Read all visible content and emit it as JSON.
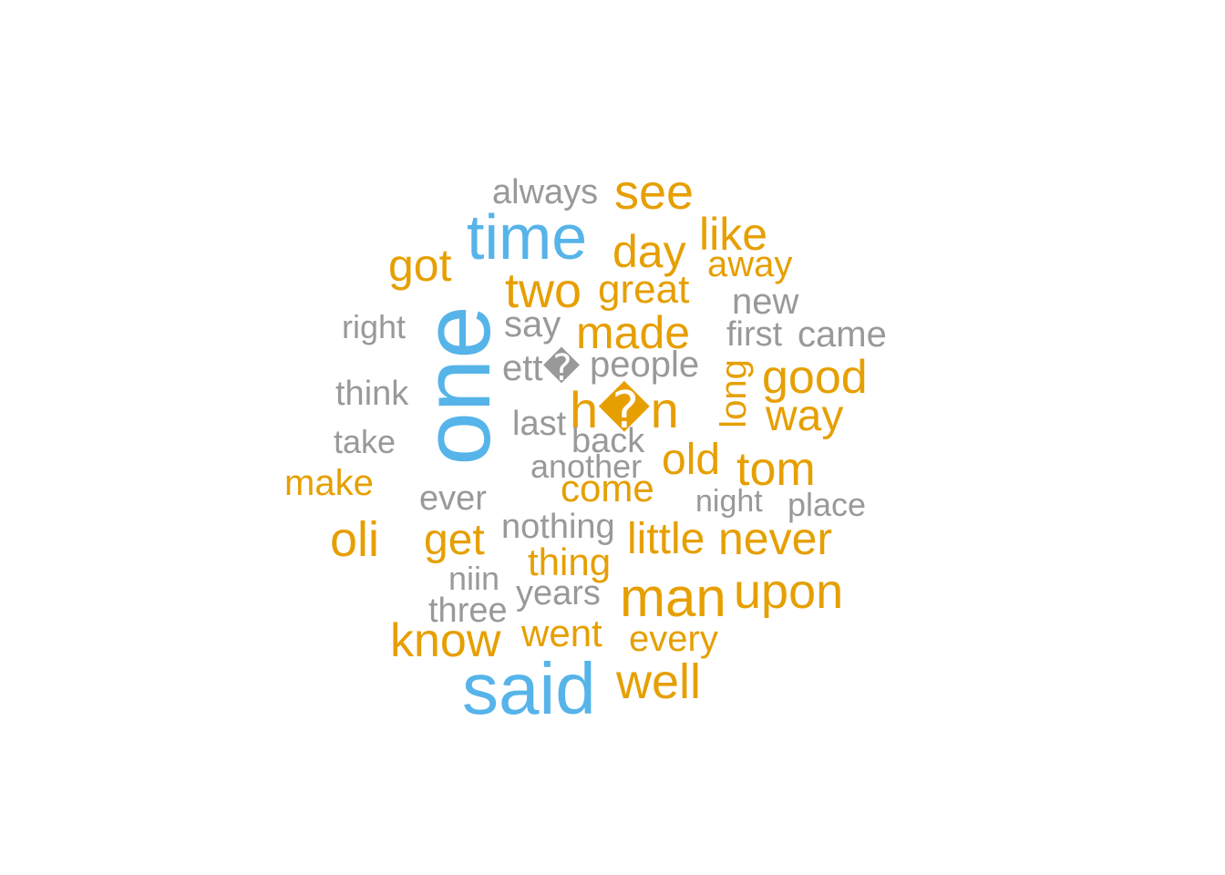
{
  "chart_data": {
    "type": "wordcloud",
    "colors": {
      "high": "#56B4E9",
      "mid": "#E69F00",
      "low": "#999999"
    },
    "words": [
      {
        "text": "one",
        "tier": "high",
        "size": 105,
        "rotated": true
      },
      {
        "text": "said",
        "tier": "high",
        "size": 80
      },
      {
        "text": "time",
        "tier": "high",
        "size": 70
      },
      {
        "text": "man",
        "tier": "mid",
        "size": 60
      },
      {
        "text": "h�n",
        "tier": "mid",
        "size": 56
      },
      {
        "text": "see",
        "tier": "mid",
        "size": 54
      },
      {
        "text": "upon",
        "tier": "mid",
        "size": 54
      },
      {
        "text": "two",
        "tier": "mid",
        "size": 54
      },
      {
        "text": "well",
        "tier": "mid",
        "size": 54
      },
      {
        "text": "oli",
        "tier": "mid",
        "size": 54
      },
      {
        "text": "tom",
        "tier": "mid",
        "size": 52
      },
      {
        "text": "good",
        "tier": "mid",
        "size": 52
      },
      {
        "text": "know",
        "tier": "mid",
        "size": 52
      },
      {
        "text": "got",
        "tier": "mid",
        "size": 50
      },
      {
        "text": "day",
        "tier": "mid",
        "size": 50
      },
      {
        "text": "like",
        "tier": "mid",
        "size": 50
      },
      {
        "text": "never",
        "tier": "mid",
        "size": 50
      },
      {
        "text": "made",
        "tier": "mid",
        "size": 50
      },
      {
        "text": "old",
        "tier": "mid",
        "size": 48
      },
      {
        "text": "little",
        "tier": "mid",
        "size": 48
      },
      {
        "text": "get",
        "tier": "mid",
        "size": 48
      },
      {
        "text": "way",
        "tier": "mid",
        "size": 48
      },
      {
        "text": "great",
        "tier": "mid",
        "size": 44
      },
      {
        "text": "come",
        "tier": "mid",
        "size": 42
      },
      {
        "text": "went",
        "tier": "mid",
        "size": 42
      },
      {
        "text": "thing",
        "tier": "mid",
        "size": 42
      },
      {
        "text": "away",
        "tier": "mid",
        "size": 40
      },
      {
        "text": "make",
        "tier": "mid",
        "size": 40
      },
      {
        "text": "every",
        "tier": "mid",
        "size": 40
      },
      {
        "text": "long",
        "tier": "mid",
        "size": 40,
        "rotated": true
      },
      {
        "text": "people",
        "tier": "low",
        "size": 40
      },
      {
        "text": "came",
        "tier": "low",
        "size": 40
      },
      {
        "text": "say",
        "tier": "low",
        "size": 40
      },
      {
        "text": "ett�",
        "tier": "low",
        "size": 40
      },
      {
        "text": "new",
        "tier": "low",
        "size": 40
      },
      {
        "text": "first",
        "tier": "low",
        "size": 38
      },
      {
        "text": "back",
        "tier": "low",
        "size": 38
      },
      {
        "text": "last",
        "tier": "low",
        "size": 38
      },
      {
        "text": "always",
        "tier": "low",
        "size": 38
      },
      {
        "text": "think",
        "tier": "low",
        "size": 38
      },
      {
        "text": "nothing",
        "tier": "low",
        "size": 38
      },
      {
        "text": "ever",
        "tier": "low",
        "size": 38
      },
      {
        "text": "years",
        "tier": "low",
        "size": 38
      },
      {
        "text": "three",
        "tier": "low",
        "size": 38
      },
      {
        "text": "right",
        "tier": "low",
        "size": 36
      },
      {
        "text": "niin",
        "tier": "low",
        "size": 36
      },
      {
        "text": "another",
        "tier": "low",
        "size": 36
      },
      {
        "text": "take",
        "tier": "low",
        "size": 36
      },
      {
        "text": "place",
        "tier": "low",
        "size": 36
      },
      {
        "text": "night",
        "tier": "low",
        "size": 34
      }
    ]
  }
}
